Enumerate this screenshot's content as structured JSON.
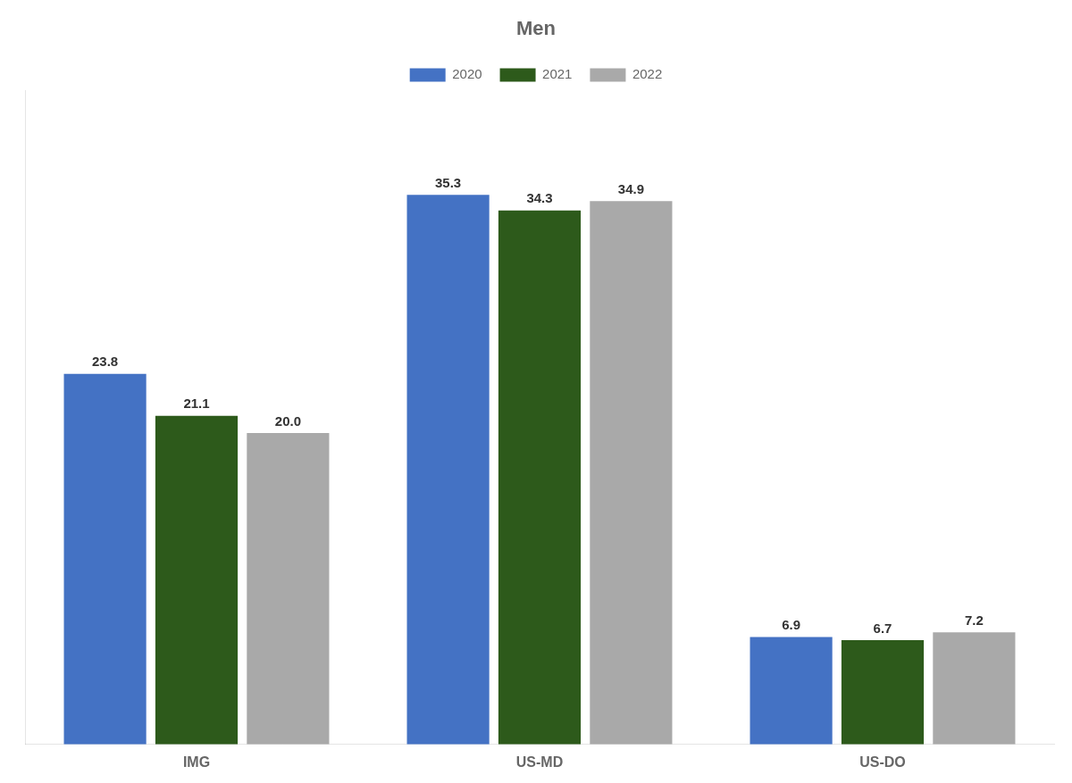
{
  "chart_data": {
    "type": "bar",
    "title": "Men",
    "categories": [
      "IMG",
      "US-MD",
      "US-DO"
    ],
    "series": [
      {
        "name": "2020",
        "color": "#4472C4",
        "values": [
          23.8,
          35.3,
          6.9
        ],
        "value_labels": [
          "23.8",
          "35.3",
          "6.9"
        ]
      },
      {
        "name": "2021",
        "color": "#2D5A1B",
        "values": [
          21.1,
          34.3,
          6.7
        ],
        "value_labels": [
          "21.1",
          "34.3",
          "6.7"
        ]
      },
      {
        "name": "2022",
        "color": "#A9A9A9",
        "values": [
          20.0,
          34.9,
          7.2
        ],
        "value_labels": [
          "20.0",
          "34.9",
          "7.2"
        ]
      }
    ],
    "ylim": [
      0,
      42
    ],
    "grid": false,
    "legend": "top",
    "data_labels": true,
    "tick_labels": "x"
  }
}
